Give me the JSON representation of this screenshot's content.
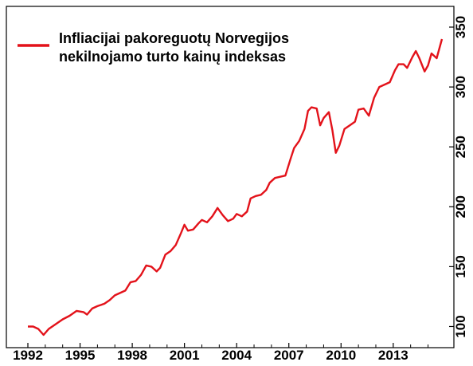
{
  "chart_data": {
    "type": "line",
    "title": "",
    "xlabel": "",
    "ylabel": "",
    "xlim": [
      1992,
      2015.8
    ],
    "ylim": [
      85,
      350
    ],
    "x_ticks": [
      1992,
      1995,
      1998,
      2001,
      2004,
      2007,
      2010,
      2013
    ],
    "x_tick_labels": [
      "1992",
      "1995",
      "1998",
      "2001",
      "2004",
      "2007",
      "2010",
      "2013"
    ],
    "y_ticks": [
      100,
      150,
      200,
      250,
      300,
      350
    ],
    "y_tick_labels": [
      "100",
      "150",
      "200",
      "250",
      "300",
      "350"
    ],
    "y_axis_position": "right",
    "grid": false,
    "legend": {
      "position": "top-left",
      "lines": [
        "Infliacijai pakoreguotų Norvegijos",
        "nekilnojamo turto kainų indeksas"
      ]
    },
    "series": [
      {
        "name": "Infliacijai pakoreguotų Norvegijos nekilnojamo turto kainų indeksas",
        "color": "#e3121a",
        "points": [
          [
            1992.0,
            100
          ],
          [
            1992.3,
            100
          ],
          [
            1992.6,
            98
          ],
          [
            1992.9,
            93
          ],
          [
            1993.2,
            98
          ],
          [
            1993.6,
            102
          ],
          [
            1994.0,
            106
          ],
          [
            1994.4,
            109
          ],
          [
            1994.8,
            113
          ],
          [
            1995.2,
            112
          ],
          [
            1995.4,
            110
          ],
          [
            1995.7,
            115
          ],
          [
            1996.0,
            117
          ],
          [
            1996.4,
            119
          ],
          [
            1996.7,
            122
          ],
          [
            1997.0,
            126
          ],
          [
            1997.3,
            128
          ],
          [
            1997.6,
            130
          ],
          [
            1997.9,
            137
          ],
          [
            1998.2,
            138
          ],
          [
            1998.5,
            143
          ],
          [
            1998.8,
            151
          ],
          [
            1999.1,
            150
          ],
          [
            1999.4,
            146
          ],
          [
            1999.6,
            149
          ],
          [
            1999.9,
            160
          ],
          [
            2000.2,
            163
          ],
          [
            2000.5,
            168
          ],
          [
            2000.8,
            178
          ],
          [
            2001.0,
            185
          ],
          [
            2001.2,
            180
          ],
          [
            2001.5,
            181
          ],
          [
            2001.8,
            186
          ],
          [
            2002.0,
            189
          ],
          [
            2002.3,
            187
          ],
          [
            2002.6,
            192
          ],
          [
            2002.9,
            199
          ],
          [
            2003.2,
            193
          ],
          [
            2003.5,
            188
          ],
          [
            2003.8,
            190
          ],
          [
            2004.0,
            194
          ],
          [
            2004.3,
            192
          ],
          [
            2004.6,
            196
          ],
          [
            2004.8,
            207
          ],
          [
            2005.1,
            209
          ],
          [
            2005.4,
            210
          ],
          [
            2005.7,
            214
          ],
          [
            2005.9,
            220
          ],
          [
            2006.2,
            224
          ],
          [
            2006.5,
            225
          ],
          [
            2006.8,
            226
          ],
          [
            2007.1,
            240
          ],
          [
            2007.3,
            249
          ],
          [
            2007.6,
            255
          ],
          [
            2007.9,
            265
          ],
          [
            2008.1,
            280
          ],
          [
            2008.3,
            283
          ],
          [
            2008.6,
            282
          ],
          [
            2008.8,
            268
          ],
          [
            2009.0,
            274
          ],
          [
            2009.3,
            279
          ],
          [
            2009.5,
            264
          ],
          [
            2009.7,
            245
          ],
          [
            2009.9,
            251
          ],
          [
            2010.2,
            265
          ],
          [
            2010.5,
            268
          ],
          [
            2010.8,
            271
          ],
          [
            2011.0,
            281
          ],
          [
            2011.3,
            282
          ],
          [
            2011.6,
            276
          ],
          [
            2011.9,
            291
          ],
          [
            2012.2,
            300
          ],
          [
            2012.5,
            302
          ],
          [
            2012.8,
            304
          ],
          [
            2013.1,
            314
          ],
          [
            2013.3,
            319
          ],
          [
            2013.6,
            319
          ],
          [
            2013.8,
            316
          ],
          [
            2014.1,
            325
          ],
          [
            2014.3,
            330
          ],
          [
            2014.5,
            324
          ],
          [
            2014.8,
            313
          ],
          [
            2015.0,
            318
          ],
          [
            2015.2,
            328
          ],
          [
            2015.5,
            324
          ],
          [
            2015.8,
            340
          ]
        ]
      }
    ]
  }
}
